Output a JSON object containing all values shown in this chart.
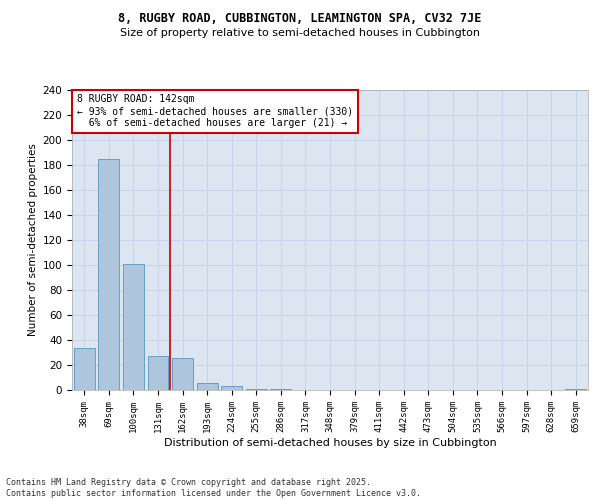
{
  "title1": "8, RUGBY ROAD, CUBBINGTON, LEAMINGTON SPA, CV32 7JE",
  "title2": "Size of property relative to semi-detached houses in Cubbington",
  "xlabel": "Distribution of semi-detached houses by size in Cubbington",
  "ylabel": "Number of semi-detached properties",
  "categories": [
    "38sqm",
    "69sqm",
    "100sqm",
    "131sqm",
    "162sqm",
    "193sqm",
    "224sqm",
    "255sqm",
    "286sqm",
    "317sqm",
    "348sqm",
    "379sqm",
    "411sqm",
    "442sqm",
    "473sqm",
    "504sqm",
    "535sqm",
    "566sqm",
    "597sqm",
    "628sqm",
    "659sqm"
  ],
  "values": [
    34,
    185,
    101,
    27,
    26,
    6,
    3,
    1,
    1,
    0,
    0,
    0,
    0,
    0,
    0,
    0,
    0,
    0,
    0,
    0,
    1
  ],
  "bar_color": "#aec6dd",
  "bar_edge_color": "#6a9fc0",
  "property_line_x": 3.5,
  "annotation_text": "8 RUGBY ROAD: 142sqm\n← 93% of semi-detached houses are smaller (330)\n  6% of semi-detached houses are larger (21) →",
  "annotation_box_color": "#ffffff",
  "annotation_box_edge_color": "#cc0000",
  "vline_color": "#cc0000",
  "grid_color": "#c8d4e8",
  "bg_color": "#dce6f0",
  "footnote1": "Contains HM Land Registry data © Crown copyright and database right 2025.",
  "footnote2": "Contains public sector information licensed under the Open Government Licence v3.0.",
  "ylim": [
    0,
    240
  ],
  "yticks": [
    0,
    20,
    40,
    60,
    80,
    100,
    120,
    140,
    160,
    180,
    200,
    220,
    240
  ]
}
